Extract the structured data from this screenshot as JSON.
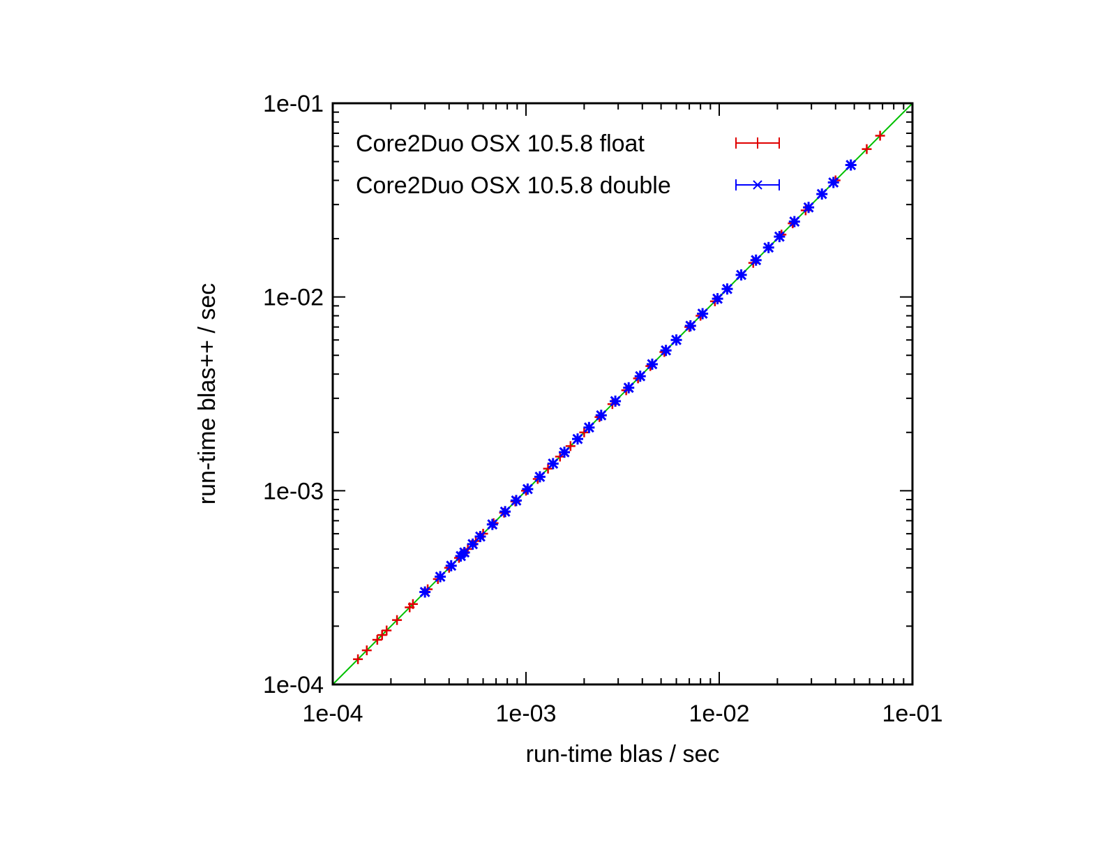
{
  "chart_data": {
    "type": "scatter",
    "title": "",
    "xlabel": "run-time blas / sec",
    "ylabel": "run-time blas++ / sec",
    "xscale": "log",
    "yscale": "log",
    "xlim": [
      0.0001,
      0.1
    ],
    "ylim": [
      0.0001,
      0.1
    ],
    "xticks": [
      "1e-04",
      "1e-03",
      "1e-02",
      "1e-01"
    ],
    "yticks": [
      "1e-04",
      "1e-03",
      "1e-02",
      "1e-01"
    ],
    "grid": false,
    "legend_position": "top-left",
    "reference_line": {
      "type": "y=x",
      "color": "#00c000"
    },
    "series": [
      {
        "name": "Core2Duo OSX 10.5.8 float",
        "color": "#e00000",
        "marker": "plus",
        "x": [
          0.000135,
          0.00015,
          0.00017,
          0.00018,
          0.00019,
          0.000215,
          0.00025,
          0.00026,
          0.00031,
          0.00035,
          0.0004,
          0.00045,
          0.0005,
          0.00055,
          0.0006,
          0.00068,
          0.00077,
          0.00088,
          0.001,
          0.00115,
          0.0013,
          0.0015,
          0.0017,
          0.002,
          0.0024,
          0.0028,
          0.0033,
          0.0038,
          0.0044,
          0.0052,
          0.006,
          0.007,
          0.008,
          0.0095,
          0.011,
          0.013,
          0.015,
          0.018,
          0.021,
          0.024,
          0.028,
          0.034,
          0.04,
          0.058,
          0.068
        ],
        "y": [
          0.000135,
          0.00015,
          0.00017,
          0.00018,
          0.00019,
          0.000215,
          0.00025,
          0.00026,
          0.00031,
          0.00035,
          0.0004,
          0.00045,
          0.0005,
          0.00055,
          0.0006,
          0.00068,
          0.00077,
          0.00088,
          0.001,
          0.00115,
          0.0013,
          0.0015,
          0.0017,
          0.002,
          0.0024,
          0.0028,
          0.0033,
          0.0038,
          0.0044,
          0.0052,
          0.006,
          0.007,
          0.008,
          0.0095,
          0.011,
          0.013,
          0.015,
          0.018,
          0.021,
          0.024,
          0.028,
          0.034,
          0.04,
          0.058,
          0.068
        ]
      },
      {
        "name": "Core2Duo OSX 10.5.8 double",
        "color": "#0000ff",
        "marker": "x",
        "x": [
          0.0003,
          0.00036,
          0.00041,
          0.00046,
          0.00048,
          0.00053,
          0.00058,
          0.00067,
          0.00078,
          0.00089,
          0.00102,
          0.00118,
          0.00138,
          0.00158,
          0.00185,
          0.00212,
          0.00245,
          0.0029,
          0.0034,
          0.0039,
          0.0045,
          0.0053,
          0.006,
          0.0071,
          0.0082,
          0.0098,
          0.011,
          0.013,
          0.0155,
          0.018,
          0.0205,
          0.0245,
          0.029,
          0.034,
          0.039,
          0.048
        ],
        "y": [
          0.0003,
          0.00036,
          0.00041,
          0.00046,
          0.00048,
          0.00053,
          0.00058,
          0.00067,
          0.00078,
          0.00089,
          0.00102,
          0.00118,
          0.00138,
          0.00158,
          0.00185,
          0.00212,
          0.00245,
          0.0029,
          0.0034,
          0.0039,
          0.0045,
          0.0053,
          0.006,
          0.0071,
          0.0082,
          0.0098,
          0.011,
          0.013,
          0.0155,
          0.018,
          0.0205,
          0.0245,
          0.029,
          0.034,
          0.039,
          0.048
        ]
      }
    ]
  }
}
